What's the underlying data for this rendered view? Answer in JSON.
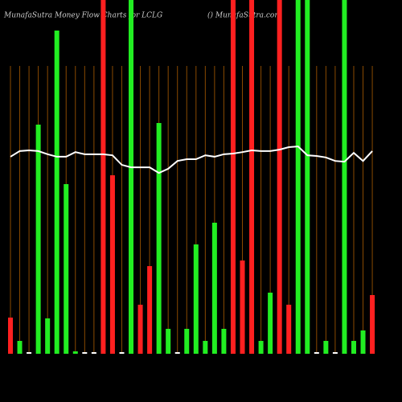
{
  "chart_data": {
    "type": "bar",
    "title": "MunafaSutra  Money Flow  Charts for LCLG",
    "subtitle": "() MunafaSutra.com",
    "ylim": [
      0,
      440
    ],
    "y2lim": [
      0,
      100
    ],
    "grid": true,
    "grid_color": "#8a4a00",
    "series": [
      {
        "name": "Money Flow",
        "colors": [
          "#ff2020",
          "#22ee22",
          "#ffffff",
          "#22ee22",
          "#22ee22",
          "#22ee22",
          "#22ee22",
          "#22ee22",
          "#ffffff",
          "#ffffff",
          "#ff2020",
          "#ff2020",
          "#ffffff",
          "#22ee22",
          "#ff2020",
          "#ff2020",
          "#22ee22",
          "#22ee22",
          "#ffffff",
          "#22ee22",
          "#22ee22",
          "#22ee22",
          "#22ee22",
          "#22ee22",
          "#ff2020",
          "#ff2020",
          "#ff2020",
          "#22ee22",
          "#22ee22",
          "#ff2020",
          "#ff2020",
          "#22ee22",
          "#22ee22",
          "#ffffff",
          "#22ee22",
          "#ffffff",
          "#22ee22",
          "#22ee22",
          "#22ee22",
          "#ff2020"
        ],
        "values": [
          45,
          16,
          2,
          285,
          44,
          402,
          211,
          3,
          2,
          2,
          440,
          222,
          2,
          440,
          61,
          109,
          287,
          31,
          2,
          31,
          136,
          16,
          163,
          31,
          440,
          116,
          440,
          16,
          76,
          440,
          61,
          440,
          440,
          2,
          16,
          2,
          440,
          16,
          29,
          73
        ]
      },
      {
        "name": "MFI",
        "type": "line",
        "axis": "y2",
        "color": "#ffffff",
        "values": [
          55.7,
          57.3,
          57.5,
          57.3,
          56.4,
          55.7,
          55.7,
          57.0,
          56.4,
          56.4,
          56.4,
          56.1,
          53.4,
          52.7,
          52.7,
          52.7,
          51.1,
          52.3,
          54.5,
          55.0,
          55.0,
          56.1,
          55.7,
          56.4,
          56.6,
          57.0,
          57.5,
          57.3,
          57.3,
          57.7,
          58.4,
          58.6,
          56.1,
          55.9,
          55.5,
          54.5,
          54.3,
          56.8,
          54.5,
          57.3
        ]
      }
    ]
  }
}
